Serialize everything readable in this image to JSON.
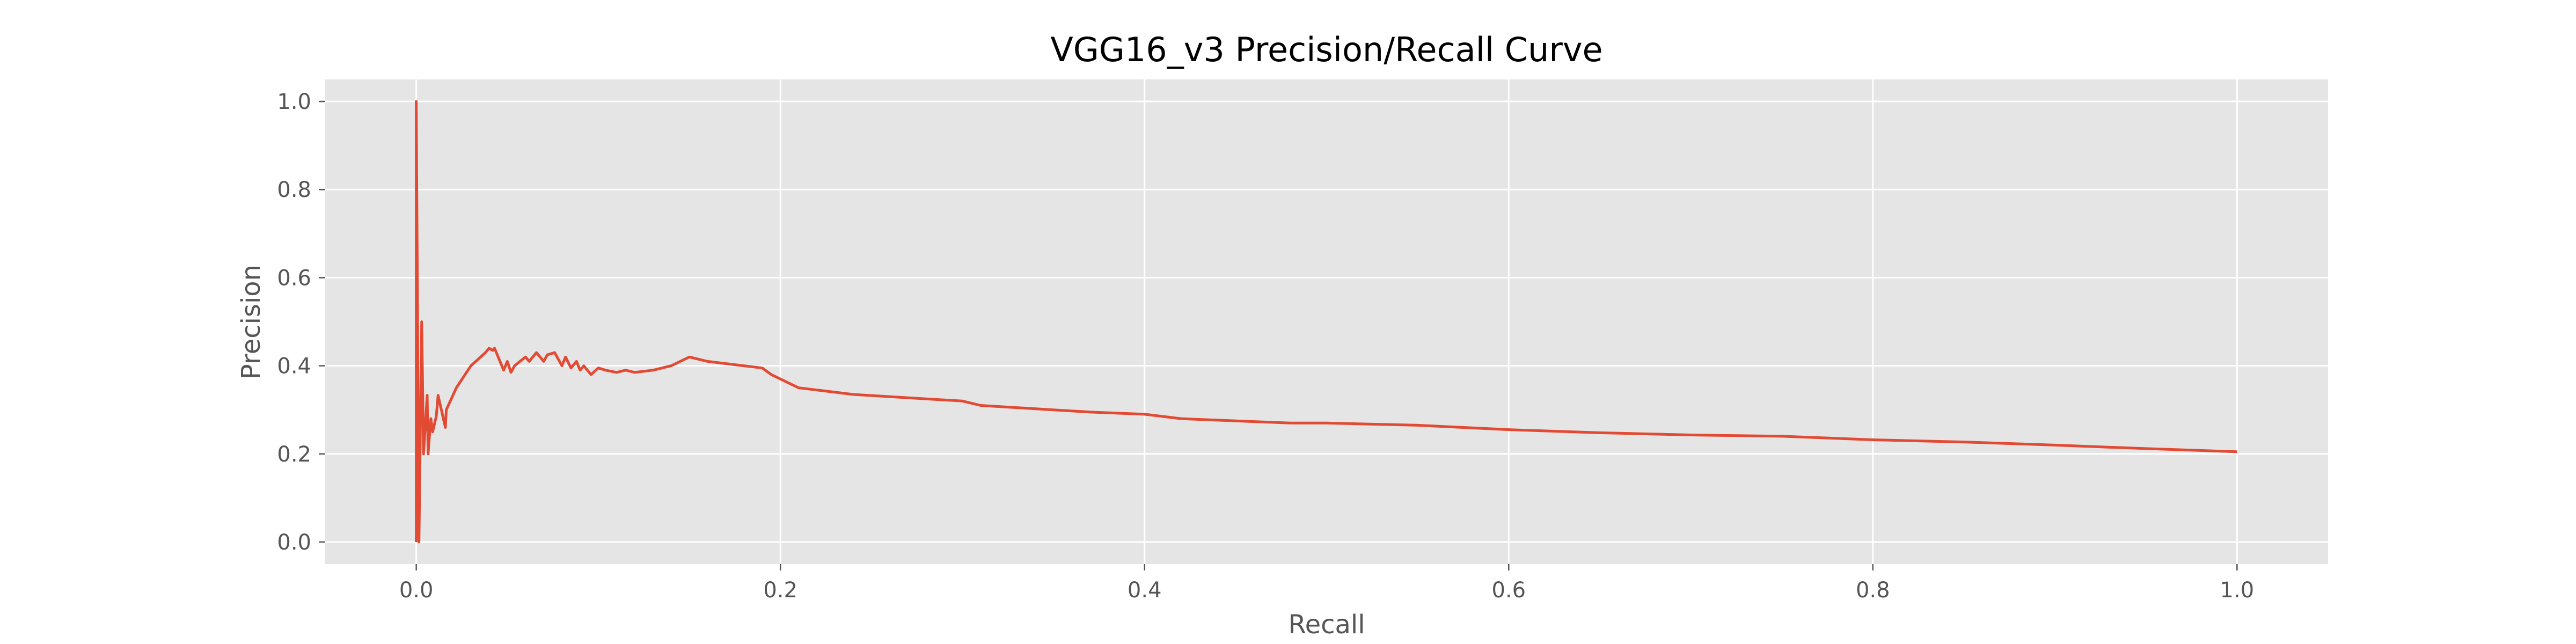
{
  "chart_data": {
    "type": "line",
    "title": "VGG16_v3 Precision/Recall Curve",
    "xlabel": "Recall",
    "ylabel": "Precision",
    "xlim": [
      -0.05,
      1.05
    ],
    "ylim": [
      -0.05,
      1.05
    ],
    "xticks": [
      0.0,
      0.2,
      0.4,
      0.6,
      0.8,
      1.0
    ],
    "yticks": [
      0.0,
      0.2,
      0.4,
      0.6,
      0.8,
      1.0
    ],
    "xtick_labels": [
      "0.0",
      "0.2",
      "0.4",
      "0.6",
      "0.8",
      "1.0"
    ],
    "ytick_labels": [
      "0.0",
      "0.2",
      "0.4",
      "0.6",
      "0.8",
      "1.0"
    ],
    "grid": true,
    "legend": false,
    "style": "ggplot",
    "colors": {
      "plot_background": "#e5e5e5",
      "grid": "#ffffff",
      "line": "#e24a33"
    },
    "series": [
      {
        "x": [
          0.0,
          0.0,
          0.0015,
          0.003,
          0.004,
          0.006,
          0.0065,
          0.008,
          0.009,
          0.011,
          0.012,
          0.016,
          0.0165,
          0.022,
          0.03,
          0.038,
          0.04,
          0.042,
          0.043,
          0.048,
          0.05,
          0.052,
          0.054,
          0.06,
          0.062,
          0.066,
          0.07,
          0.072,
          0.076,
          0.08,
          0.082,
          0.085,
          0.088,
          0.09,
          0.092,
          0.096,
          0.1,
          0.104,
          0.11,
          0.115,
          0.12,
          0.13,
          0.14,
          0.15,
          0.16,
          0.17,
          0.18,
          0.19,
          0.195,
          0.2,
          0.21,
          0.22,
          0.24,
          0.26,
          0.28,
          0.3,
          0.31,
          0.33,
          0.35,
          0.37,
          0.4,
          0.42,
          0.45,
          0.48,
          0.5,
          0.55,
          0.6,
          0.65,
          0.7,
          0.75,
          0.8,
          0.85,
          0.9,
          0.95,
          1.0
        ],
        "y": [
          0.0,
          1.0,
          0.0,
          0.5,
          0.2,
          0.333,
          0.2,
          0.28,
          0.25,
          0.286,
          0.333,
          0.26,
          0.3,
          0.35,
          0.4,
          0.43,
          0.44,
          0.435,
          0.44,
          0.39,
          0.41,
          0.385,
          0.4,
          0.42,
          0.41,
          0.43,
          0.41,
          0.425,
          0.43,
          0.4,
          0.42,
          0.395,
          0.41,
          0.39,
          0.4,
          0.38,
          0.395,
          0.39,
          0.385,
          0.39,
          0.385,
          0.39,
          0.4,
          0.42,
          0.41,
          0.405,
          0.4,
          0.395,
          0.38,
          0.37,
          0.35,
          0.345,
          0.335,
          0.33,
          0.325,
          0.32,
          0.31,
          0.305,
          0.3,
          0.295,
          0.29,
          0.28,
          0.275,
          0.27,
          0.27,
          0.265,
          0.255,
          0.248,
          0.243,
          0.24,
          0.232,
          0.227,
          0.22,
          0.212,
          0.205
        ]
      }
    ]
  }
}
